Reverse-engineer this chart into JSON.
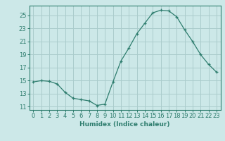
{
  "x": [
    0,
    1,
    2,
    3,
    4,
    5,
    6,
    7,
    8,
    9,
    10,
    11,
    12,
    13,
    14,
    15,
    16,
    17,
    18,
    19,
    20,
    21,
    22,
    23
  ],
  "y": [
    14.8,
    15.0,
    14.9,
    14.5,
    13.2,
    12.3,
    12.1,
    11.9,
    11.2,
    11.4,
    14.8,
    18.0,
    20.0,
    22.2,
    23.8,
    25.4,
    25.8,
    25.7,
    24.8,
    22.8,
    21.0,
    19.0,
    17.5,
    16.3
  ],
  "xlabel": "Humidex (Indice chaleur)",
  "ylim": [
    10.5,
    26.5
  ],
  "xlim": [
    -0.5,
    23.5
  ],
  "yticks": [
    11,
    13,
    15,
    17,
    19,
    21,
    23,
    25
  ],
  "xticks": [
    0,
    1,
    2,
    3,
    4,
    5,
    6,
    7,
    8,
    9,
    10,
    11,
    12,
    13,
    14,
    15,
    16,
    17,
    18,
    19,
    20,
    21,
    22,
    23
  ],
  "xtick_labels": [
    "0",
    "1",
    "2",
    "3",
    "4",
    "5",
    "6",
    "7",
    "8",
    "9",
    "10",
    "11",
    "12",
    "13",
    "14",
    "15",
    "16",
    "17",
    "18",
    "19",
    "20",
    "21",
    "22",
    "23"
  ],
  "line_color": "#2e7d6e",
  "marker": "+",
  "background_color": "#cce8e8",
  "grid_color": "#aacccc",
  "label_fontsize": 6.5,
  "tick_fontsize": 6.0
}
